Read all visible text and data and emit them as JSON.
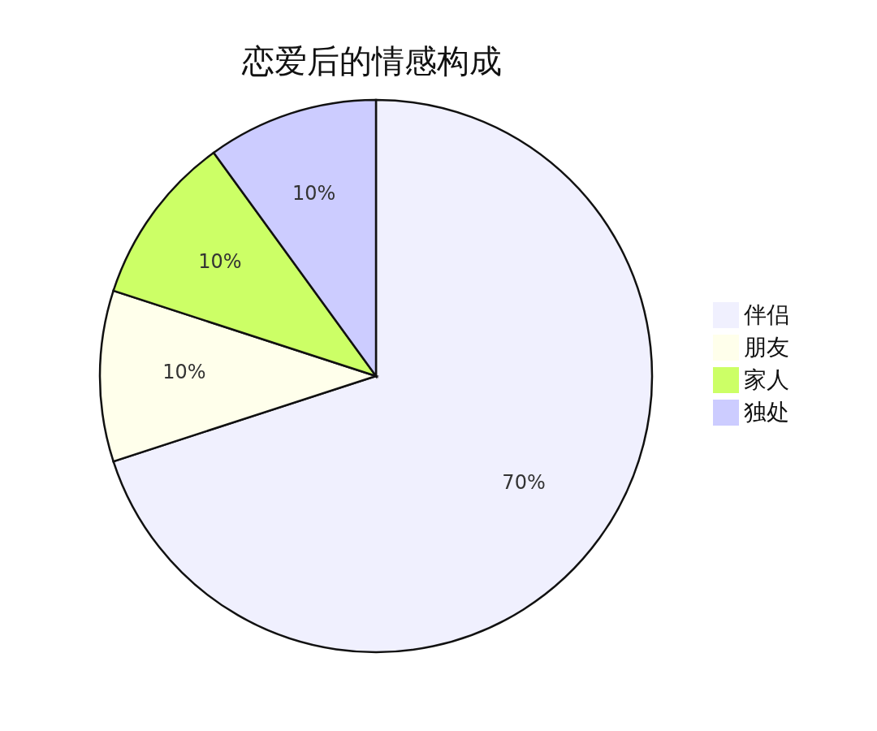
{
  "chart_data": {
    "type": "pie",
    "title": "恋爱后的情感构成",
    "categories": [
      "伴侣",
      "朋友",
      "家人",
      "独处"
    ],
    "values": [
      70,
      10,
      10,
      10
    ],
    "value_labels": [
      "70%",
      "10%",
      "10%",
      "10%"
    ],
    "colors": [
      "#f0f0fe",
      "#ffffeb",
      "#ccff66",
      "#ccccff"
    ],
    "legend": "right"
  }
}
